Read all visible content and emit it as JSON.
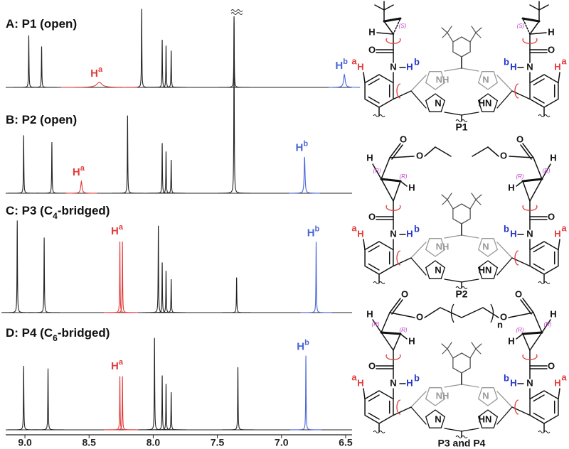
{
  "spectra": {
    "xlim": [
      9.15,
      6.45
    ],
    "xticks": [
      {
        "value": 9,
        "label": "9.0"
      },
      8.5,
      {
        "value": 8,
        "label": "8.0"
      },
      7.5,
      {
        "value": 7,
        "label": "7.0"
      },
      6.5
    ],
    "panels": [
      {
        "label": [
          "A: P1 (open)"
        ],
        "ha": {
          "text": [
            "H",
            "a"
          ],
          "color": "#e23b3b"
        },
        "hb": {
          "text": [
            "H",
            "b"
          ],
          "color": "#4a66d6"
        },
        "peaks": [
          [
            8.97,
            0.61,
            "#222222",
            0.004
          ],
          [
            8.87,
            0.48,
            "#222222",
            0.004
          ],
          [
            8.42,
            0.06,
            "#e23b3b",
            0.05
          ],
          [
            8.09,
            0.94,
            "#222222",
            0.003
          ],
          [
            7.93,
            0.57,
            "#222222",
            0.003
          ],
          [
            7.9,
            0.5,
            "#222222",
            0.003
          ],
          [
            7.86,
            0.44,
            "#222222",
            0.003
          ],
          [
            7.37,
            0.85,
            "#222222",
            0.002
          ],
          [
            6.51,
            0.15,
            "#4a66d6",
            0.015
          ]
        ]
      },
      {
        "label": [
          "B: P2 (open)"
        ],
        "ha": {
          "text": [
            "H",
            "a"
          ],
          "color": "#e23b3b"
        },
        "hb": {
          "text": [
            "H",
            "b"
          ],
          "color": "#4a66d6"
        },
        "peaks": [
          [
            9.01,
            0.68,
            "#222222",
            0.004
          ],
          [
            8.79,
            0.6,
            "#222222",
            0.004
          ],
          [
            8.56,
            0.14,
            "#e23b3b",
            0.012
          ],
          [
            8.2,
            0.93,
            "#222222",
            0.003
          ],
          [
            7.93,
            0.6,
            "#222222",
            0.003
          ],
          [
            7.9,
            0.5,
            "#222222",
            0.003
          ],
          [
            7.86,
            0.4,
            "#222222",
            0.003
          ],
          [
            7.37,
            2.06,
            "#222222",
            0.002
          ],
          [
            6.82,
            0.43,
            "#4a66d6",
            0.008
          ]
        ]
      },
      {
        "label": [
          "C: P3 (C",
          "4",
          "-bridged)"
        ],
        "ha": {
          "text": [
            "H",
            "a"
          ],
          "color": "#e23b3b"
        },
        "hb": {
          "text": [
            "H",
            "b"
          ],
          "color": "#4a66d6"
        },
        "peaks": [
          [
            9.06,
            1.08,
            "#222222",
            0.004
          ],
          [
            8.85,
            0.88,
            "#222222",
            0.004
          ],
          [
            8.26,
            0.85,
            "#e23b3b",
            0.003
          ],
          [
            8.24,
            0.85,
            "#e23b3b",
            0.003
          ],
          [
            7.96,
            1.04,
            "#222222",
            0.003
          ],
          [
            7.93,
            0.6,
            "#222222",
            0.003
          ],
          [
            7.9,
            0.5,
            "#222222",
            0.003
          ],
          [
            7.86,
            0.4,
            "#222222",
            0.003
          ],
          [
            7.35,
            0.42,
            "#222222",
            0.002
          ],
          [
            6.73,
            0.83,
            "#4a66d6",
            0.004
          ]
        ]
      },
      {
        "label": [
          "D: P4 (C",
          "6",
          "-bridged)"
        ],
        "ha": {
          "text": [
            "H",
            "a"
          ],
          "color": "#e23b3b"
        },
        "hb": {
          "text": [
            "H",
            "b"
          ],
          "color": "#4a66d6"
        },
        "peaks": [
          [
            9.01,
            0.75,
            "#222222",
            0.004
          ],
          [
            8.82,
            0.72,
            "#222222",
            0.004
          ],
          [
            8.26,
            0.64,
            "#e23b3b",
            0.003
          ],
          [
            8.24,
            0.64,
            "#e23b3b",
            0.003
          ],
          [
            7.99,
            1.1,
            "#222222",
            0.003
          ],
          [
            7.93,
            0.65,
            "#222222",
            0.003
          ],
          [
            7.9,
            0.55,
            "#222222",
            0.003
          ],
          [
            7.86,
            0.45,
            "#222222",
            0.003
          ],
          [
            7.34,
            0.75,
            "#222222",
            0.002
          ],
          [
            6.81,
            0.87,
            "#4a66d6",
            0.004
          ]
        ]
      }
    ]
  },
  "structures": [
    {
      "name": "P1",
      "core": [
        "a",
        "H",
        "N",
        "H",
        "b",
        "b",
        "H",
        "N",
        "H",
        "a",
        "O",
        "O",
        "NH",
        "N",
        "N",
        "HN"
      ],
      "top": [
        "H",
        "(S)",
        "H",
        "(S)"
      ]
    },
    {
      "name": "P2",
      "core": [
        "a",
        "H",
        "N",
        "H",
        "b",
        "b",
        "H",
        "N",
        "H",
        "a",
        "O",
        "O",
        "NH",
        "N",
        "N",
        "HN"
      ],
      "top": [
        "O",
        "O",
        "H",
        "(R)",
        "(R)",
        "H",
        "O",
        "O",
        "H",
        "(R)",
        "(R)",
        "H"
      ]
    },
    {
      "name": "P3 and P4",
      "core": [
        "a",
        "H",
        "N",
        "H",
        "b",
        "b",
        "H",
        "N",
        "H",
        "a",
        "O",
        "O",
        "NH",
        "N",
        "N",
        "HN"
      ],
      "top": [
        "O",
        "O",
        "H",
        "(R)",
        "(R)",
        "H",
        "O",
        "O",
        "H",
        "(R)",
        "(R)",
        "H",
        "n"
      ]
    }
  ]
}
